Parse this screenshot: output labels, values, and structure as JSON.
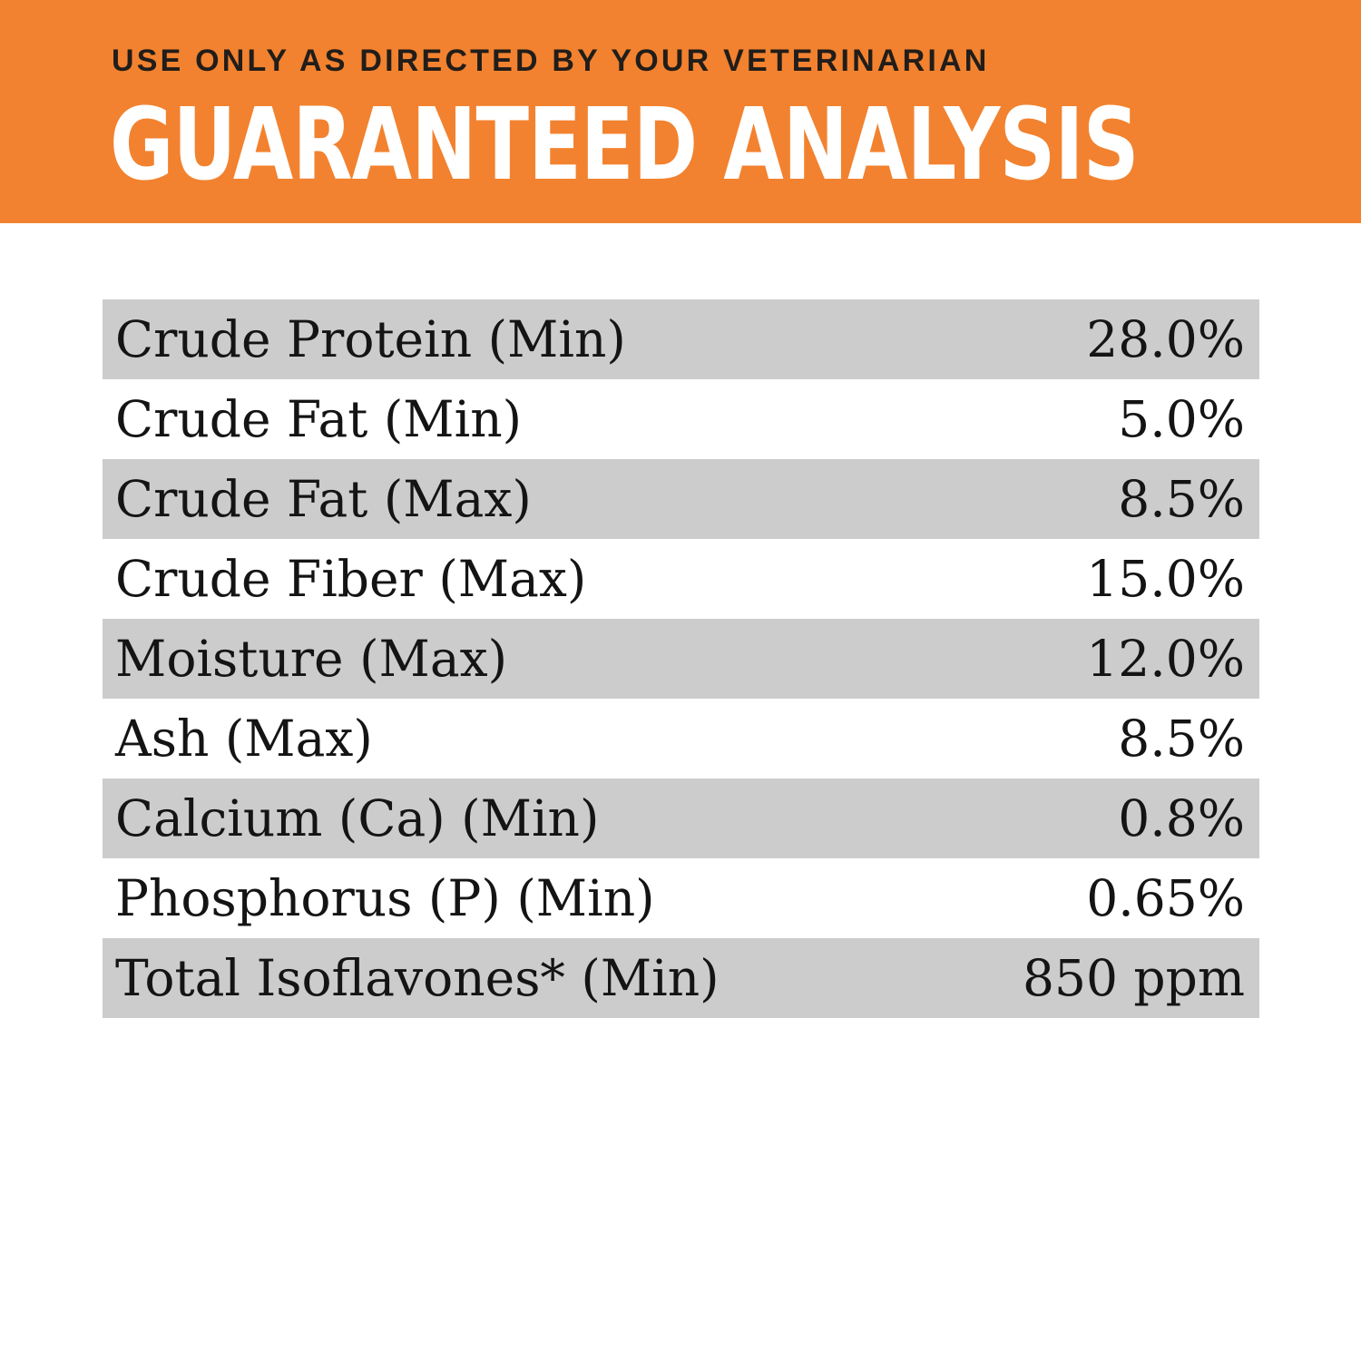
{
  "header": {
    "notice": "USE ONLY AS DIRECTED BY YOUR VETERINARIAN",
    "title": "GUARANTEED ANALYSIS",
    "background_color": "#F2822F",
    "notice_color": "#211D1A",
    "title_color": "#FFFFFF"
  },
  "table": {
    "stripe_color": "#CCCCCC",
    "text_color": "#141414",
    "rows": [
      {
        "label": "Crude Protein (Min)",
        "value": "28.0%"
      },
      {
        "label": "Crude Fat (Min)",
        "value": "5.0%"
      },
      {
        "label": "Crude Fat (Max)",
        "value": "8.5%"
      },
      {
        "label": "Crude Fiber (Max)",
        "value": "15.0%"
      },
      {
        "label": "Moisture (Max)",
        "value": "12.0%"
      },
      {
        "label": "Ash (Max)",
        "value": "8.5%"
      },
      {
        "label": "Calcium (Ca) (Min)",
        "value": "0.8%"
      },
      {
        "label": "Phosphorus (P) (Min)",
        "value": "0.65%"
      },
      {
        "label": "Total Isoflavones* (Min)",
        "value": "850 ppm"
      }
    ]
  }
}
